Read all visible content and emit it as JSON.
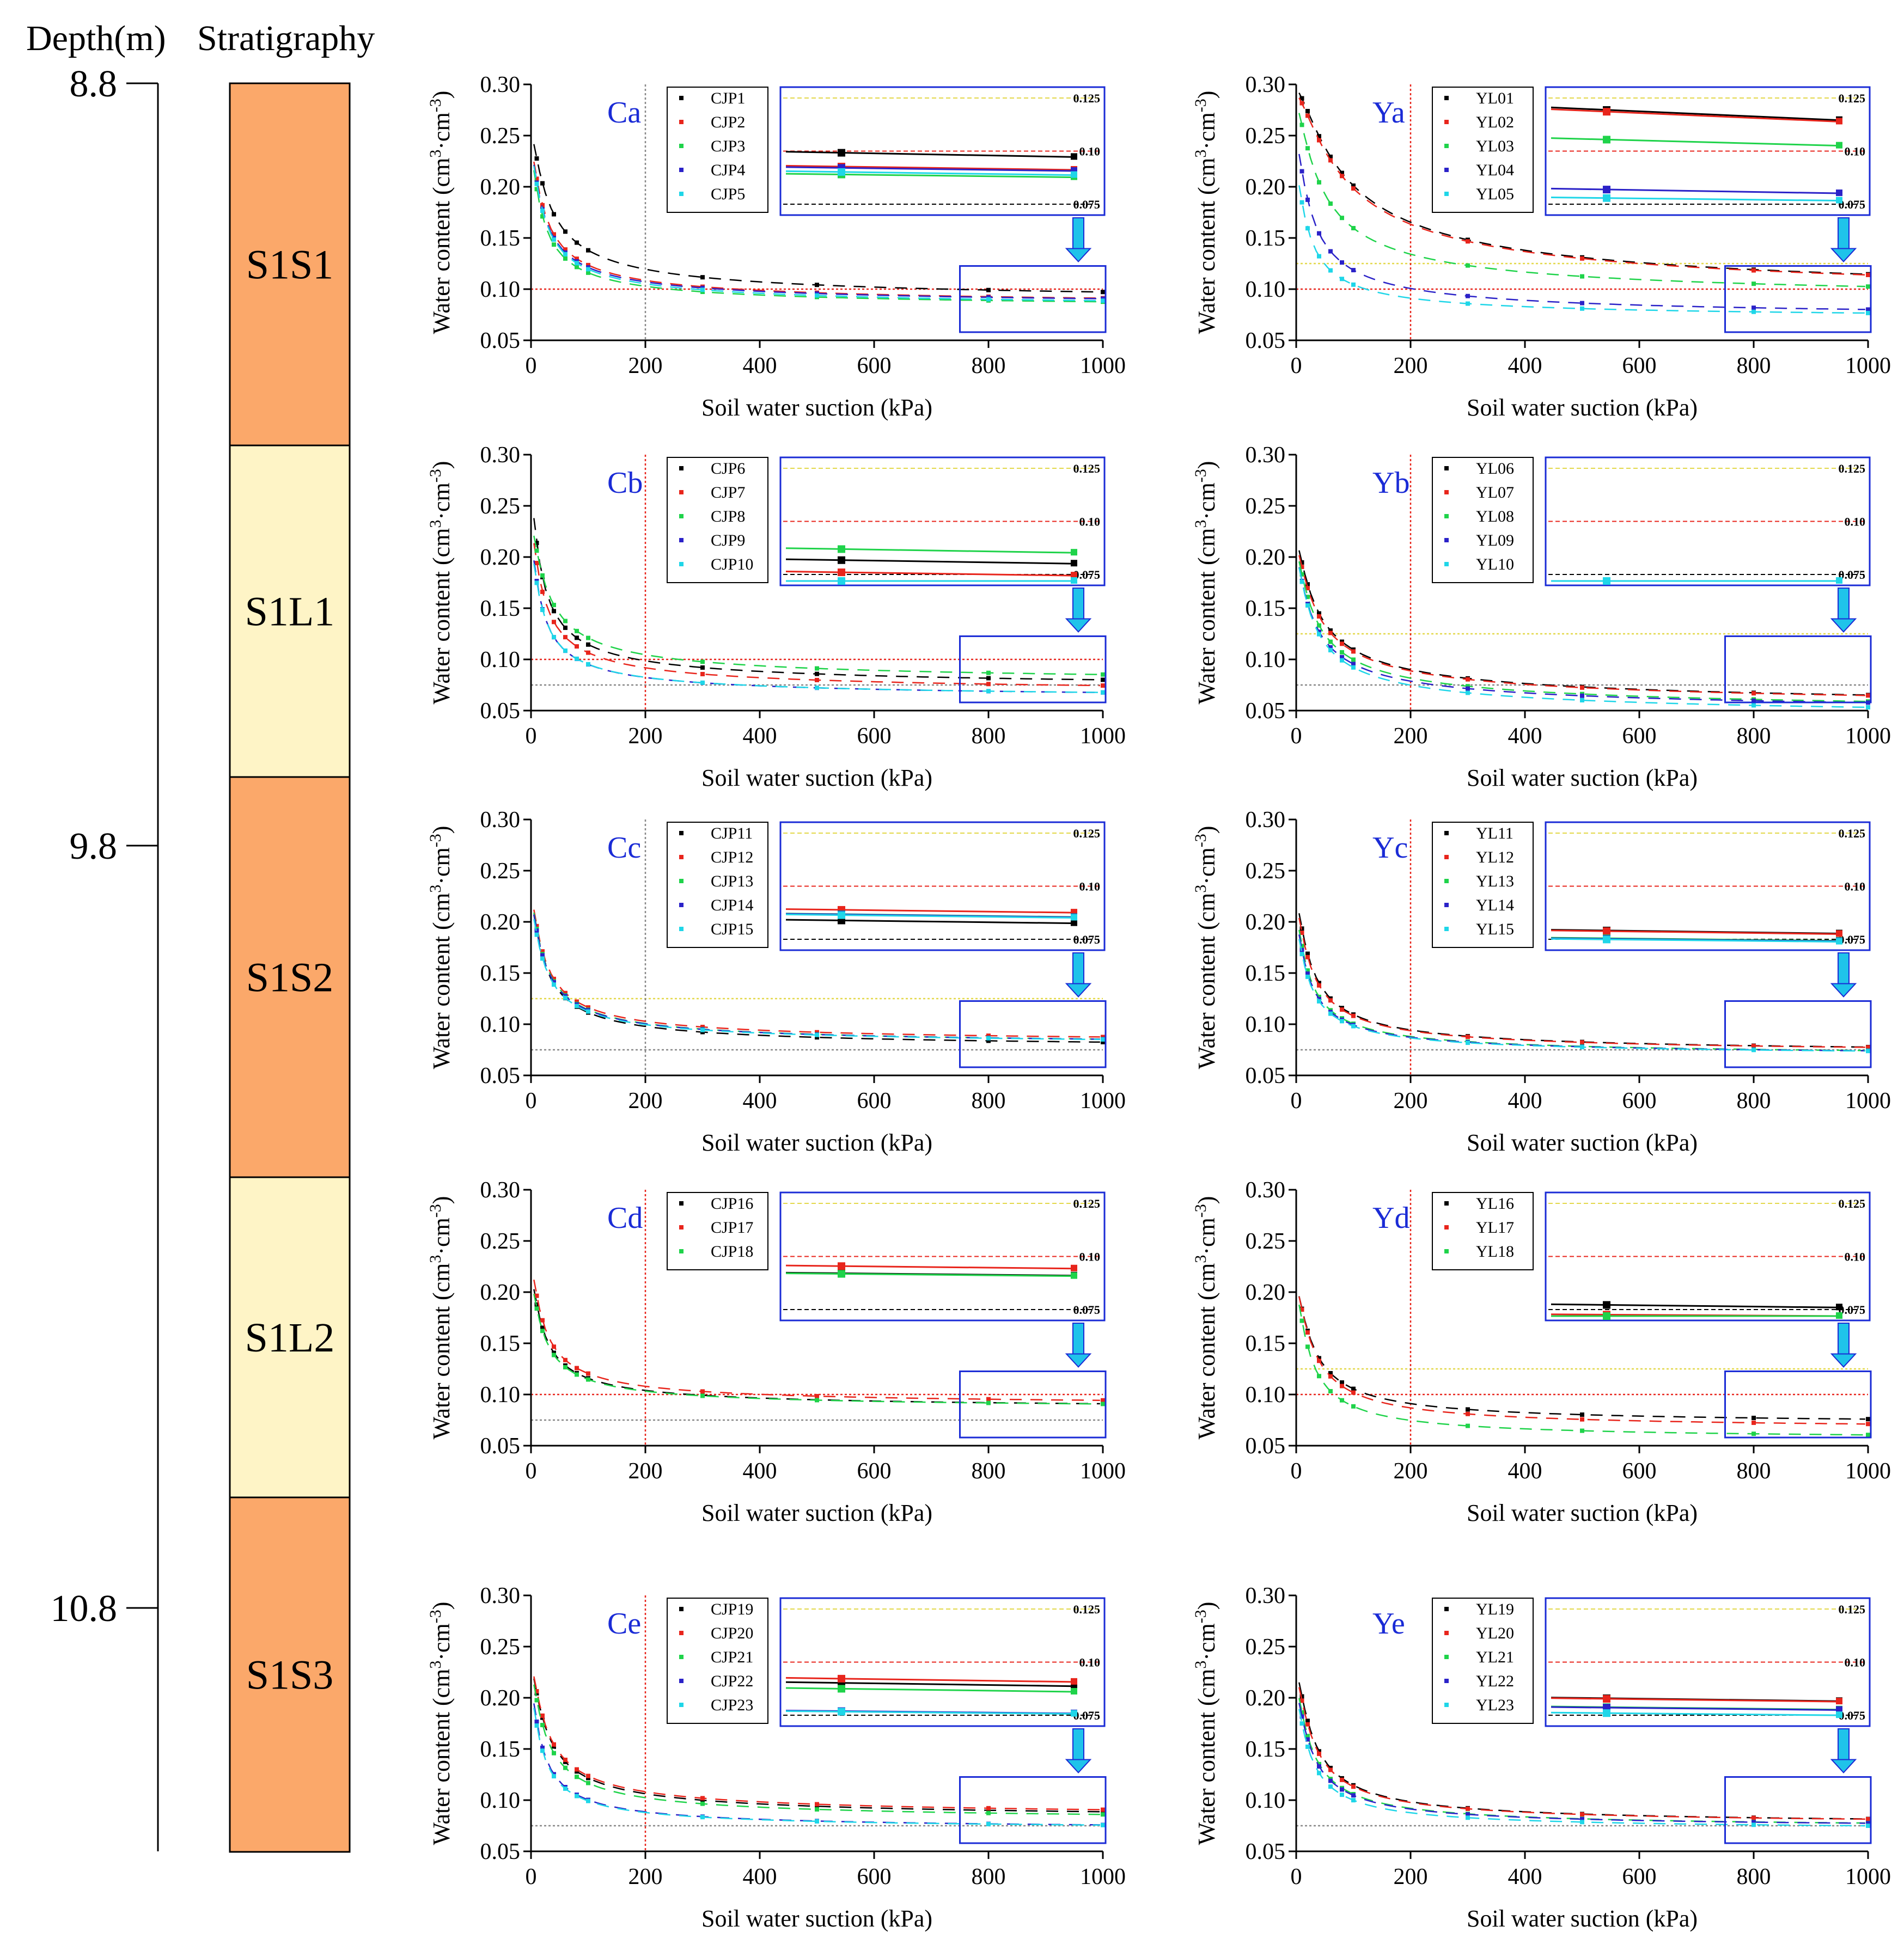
{
  "header": {
    "depth_label": "Depth(m)",
    "strat_label": "Stratigraphy"
  },
  "depth_ticks": [
    {
      "label": "8.8",
      "depth": 8.8
    },
    {
      "label": "9.8",
      "depth": 9.8
    },
    {
      "label": "10.8",
      "depth": 10.8
    }
  ],
  "layers": [
    {
      "name": "S1S1",
      "top": 8.8,
      "bottom": 9.275,
      "color": "#FBA86A"
    },
    {
      "name": "S1L1",
      "top": 9.275,
      "bottom": 9.71,
      "color": "#FEF4C6"
    },
    {
      "name": "S1S2",
      "top": 9.71,
      "bottom": 10.235,
      "color": "#FBA86A"
    },
    {
      "name": "S1L2",
      "top": 10.235,
      "bottom": 10.655,
      "color": "#FEF4C6"
    },
    {
      "name": "S1S3",
      "top": 10.655,
      "bottom": 11.12,
      "color": "#FBA86A"
    }
  ],
  "axis_common": {
    "xlabel": "Soil water suction (kPa)",
    "ylabel_main": "Water content (cm",
    "ylabel_sup1": "3",
    "ylabel_mid": "·cm",
    "ylabel_sup2": "-3",
    "ylabel_end": ")",
    "xlim": [
      0,
      1000
    ],
    "ylim": [
      0.05,
      0.3
    ],
    "xticks": [
      "0",
      "200",
      "400",
      "600",
      "800",
      "1000"
    ],
    "yticks": [
      "0.05",
      "0.10",
      "0.15",
      "0.20",
      "0.25",
      "0.30"
    ],
    "inset_labels": [
      "0.125",
      "0.10",
      "0.075"
    ]
  },
  "colors": {
    "series": [
      "#000000",
      "#e8251c",
      "#1fd34a",
      "#2b22c8",
      "#1fd6e8"
    ],
    "frame": "#1a2bd6",
    "arrow": "#1fc3ea",
    "ref_red": "#e8251c",
    "ref_yellow": "#e3d84a",
    "ref_gray": "#888888"
  },
  "chart_data": [
    {
      "type": "scatter",
      "title": "Ca",
      "column": "C",
      "row": 0,
      "series": [
        {
          "name": "CJP1",
          "theta_r": 0.085,
          "theta_s": 0.252,
          "a": 0.055,
          "n": 0.45
        },
        {
          "name": "CJP2",
          "theta_r": 0.082,
          "theta_s": 0.238,
          "a": 0.07,
          "n": 0.46
        },
        {
          "name": "CJP3",
          "theta_r": 0.08,
          "theta_s": 0.232,
          "a": 0.08,
          "n": 0.47
        },
        {
          "name": "CJP4",
          "theta_r": 0.082,
          "theta_s": 0.236,
          "a": 0.075,
          "n": 0.46
        },
        {
          "name": "CJP5",
          "theta_r": 0.08,
          "theta_s": 0.235,
          "a": 0.075,
          "n": 0.46
        }
      ],
      "ref_lines": [
        {
          "y": 0.1,
          "color": "red"
        }
      ],
      "vline": 200,
      "vline_color": "gray"
    },
    {
      "type": "scatter",
      "title": "Cb",
      "column": "C",
      "row": 1,
      "series": [
        {
          "name": "CJP6",
          "theta_r": 0.07,
          "theta_s": 0.26,
          "a": 0.09,
          "n": 0.45
        },
        {
          "name": "CJP7",
          "theta_r": 0.065,
          "theta_s": 0.23,
          "a": 0.08,
          "n": 0.45
        },
        {
          "name": "CJP8",
          "theta_r": 0.075,
          "theta_s": 0.232,
          "a": 0.06,
          "n": 0.46
        },
        {
          "name": "CJP9",
          "theta_r": 0.06,
          "theta_s": 0.215,
          "a": 0.09,
          "n": 0.46
        },
        {
          "name": "CJP10",
          "theta_r": 0.06,
          "theta_s": 0.21,
          "a": 0.085,
          "n": 0.46
        }
      ],
      "ref_lines": [
        {
          "y": 0.1,
          "color": "red"
        },
        {
          "y": 0.075,
          "color": "gray"
        }
      ],
      "vline": 200,
      "vline_color": "red"
    },
    {
      "type": "scatter",
      "title": "Cc",
      "column": "C",
      "row": 2,
      "series": [
        {
          "name": "CJP11",
          "theta_r": 0.075,
          "theta_s": 0.22,
          "a": 0.07,
          "n": 0.48
        },
        {
          "name": "CJP12",
          "theta_r": 0.08,
          "theta_s": 0.225,
          "a": 0.07,
          "n": 0.48
        },
        {
          "name": "CJP13",
          "theta_r": 0.078,
          "theta_s": 0.222,
          "a": 0.07,
          "n": 0.48
        },
        {
          "name": "CJP14",
          "theta_r": 0.078,
          "theta_s": 0.22,
          "a": 0.07,
          "n": 0.48
        },
        {
          "name": "CJP15",
          "theta_r": 0.078,
          "theta_s": 0.215,
          "a": 0.07,
          "n": 0.48
        }
      ],
      "ref_lines": [
        {
          "y": 0.125,
          "color": "yellow"
        },
        {
          "y": 0.075,
          "color": "gray"
        }
      ],
      "vline": 200,
      "vline_color": "gray"
    },
    {
      "type": "scatter",
      "title": "Cd",
      "column": "C",
      "row": 3,
      "series": [
        {
          "name": "CJP16",
          "theta_r": 0.085,
          "theta_s": 0.215,
          "a": 0.07,
          "n": 0.5
        },
        {
          "name": "CJP17",
          "theta_r": 0.088,
          "theta_s": 0.225,
          "a": 0.07,
          "n": 0.5
        },
        {
          "name": "CJP18",
          "theta_r": 0.085,
          "theta_s": 0.21,
          "a": 0.07,
          "n": 0.5
        }
      ],
      "ref_lines": [
        {
          "y": 0.1,
          "color": "red"
        },
        {
          "y": 0.075,
          "color": "gray"
        }
      ],
      "vline": 200,
      "vline_color": "red"
    },
    {
      "type": "scatter",
      "title": "Ce",
      "column": "C",
      "row": 4,
      "series": [
        {
          "name": "CJP19",
          "theta_r": 0.08,
          "theta_s": 0.23,
          "a": 0.06,
          "n": 0.48
        },
        {
          "name": "CJP20",
          "theta_r": 0.082,
          "theta_s": 0.232,
          "a": 0.06,
          "n": 0.48
        },
        {
          "name": "CJP21",
          "theta_r": 0.078,
          "theta_s": 0.225,
          "a": 0.065,
          "n": 0.48
        },
        {
          "name": "CJP22",
          "theta_r": 0.07,
          "theta_s": 0.21,
          "a": 0.08,
          "n": 0.5
        },
        {
          "name": "CJP23",
          "theta_r": 0.07,
          "theta_s": 0.205,
          "a": 0.08,
          "n": 0.5
        }
      ],
      "ref_lines": [
        {
          "y": 0.075,
          "color": "gray"
        }
      ],
      "vline": 200,
      "vline_color": "red"
    },
    {
      "type": "scatter",
      "title": "Ya",
      "column": "Y",
      "row": 0,
      "series": [
        {
          "name": "YL01",
          "theta_r": 0.085,
          "theta_s": 0.295,
          "a": 0.02,
          "n": 0.45
        },
        {
          "name": "YL02",
          "theta_r": 0.085,
          "theta_s": 0.29,
          "a": 0.02,
          "n": 0.45
        },
        {
          "name": "YL03",
          "theta_r": 0.085,
          "theta_s": 0.28,
          "a": 0.04,
          "n": 0.45
        },
        {
          "name": "YL04",
          "theta_r": 0.07,
          "theta_s": 0.245,
          "a": 0.06,
          "n": 0.48
        },
        {
          "name": "YL05",
          "theta_r": 0.07,
          "theta_s": 0.215,
          "a": 0.07,
          "n": 0.5
        }
      ],
      "ref_lines": [
        {
          "y": 0.125,
          "color": "yellow"
        },
        {
          "y": 0.1,
          "color": "red"
        }
      ],
      "vline": 200,
      "vline_color": "red"
    },
    {
      "type": "scatter",
      "title": "Yb",
      "column": "Y",
      "row": 1,
      "series": [
        {
          "name": "YL06",
          "theta_r": 0.05,
          "theta_s": 0.215,
          "a": 0.05,
          "n": 0.42
        },
        {
          "name": "YL07",
          "theta_r": 0.05,
          "theta_s": 0.21,
          "a": 0.05,
          "n": 0.42
        },
        {
          "name": "YL08",
          "theta_r": 0.045,
          "theta_s": 0.205,
          "a": 0.055,
          "n": 0.42
        },
        {
          "name": "YL09",
          "theta_r": 0.045,
          "theta_s": 0.2,
          "a": 0.06,
          "n": 0.42
        },
        {
          "name": "YL10",
          "theta_r": 0.04,
          "theta_s": 0.2,
          "a": 0.06,
          "n": 0.42
        }
      ],
      "ref_lines": [
        {
          "y": 0.125,
          "color": "yellow"
        },
        {
          "y": 0.075,
          "color": "gray"
        }
      ],
      "vline": 200,
      "vline_color": "red"
    },
    {
      "type": "scatter",
      "title": "Yc",
      "column": "Y",
      "row": 2,
      "series": [
        {
          "name": "YL11",
          "theta_r": 0.07,
          "theta_s": 0.22,
          "a": 0.06,
          "n": 0.5
        },
        {
          "name": "YL12",
          "theta_r": 0.07,
          "theta_s": 0.215,
          "a": 0.06,
          "n": 0.5
        },
        {
          "name": "YL13",
          "theta_r": 0.068,
          "theta_s": 0.205,
          "a": 0.07,
          "n": 0.5
        },
        {
          "name": "YL14",
          "theta_r": 0.068,
          "theta_s": 0.2,
          "a": 0.07,
          "n": 0.5
        },
        {
          "name": "YL15",
          "theta_r": 0.068,
          "theta_s": 0.195,
          "a": 0.07,
          "n": 0.5
        }
      ],
      "ref_lines": [
        {
          "y": 0.075,
          "color": "gray"
        }
      ],
      "vline": 200,
      "vline_color": "red"
    },
    {
      "type": "scatter",
      "title": "Yd",
      "column": "Y",
      "row": 3,
      "series": [
        {
          "name": "YL16",
          "theta_r": 0.07,
          "theta_s": 0.205,
          "a": 0.05,
          "n": 0.55
        },
        {
          "name": "YL17",
          "theta_r": 0.065,
          "theta_s": 0.205,
          "a": 0.05,
          "n": 0.55
        },
        {
          "name": "YL18",
          "theta_r": 0.055,
          "theta_s": 0.2,
          "a": 0.06,
          "n": 0.55
        }
      ],
      "ref_lines": [
        {
          "y": 0.125,
          "color": "yellow"
        },
        {
          "y": 0.1,
          "color": "red"
        }
      ],
      "vline": 200,
      "vline_color": "red"
    },
    {
      "type": "scatter",
      "title": "Ye",
      "column": "Y",
      "row": 4,
      "series": [
        {
          "name": "YL19",
          "theta_r": 0.075,
          "theta_s": 0.225,
          "a": 0.05,
          "n": 0.55
        },
        {
          "name": "YL20",
          "theta_r": 0.075,
          "theta_s": 0.22,
          "a": 0.05,
          "n": 0.55
        },
        {
          "name": "YL21",
          "theta_r": 0.072,
          "theta_s": 0.21,
          "a": 0.055,
          "n": 0.55
        },
        {
          "name": "YL22",
          "theta_r": 0.072,
          "theta_s": 0.205,
          "a": 0.055,
          "n": 0.55
        },
        {
          "name": "YL23",
          "theta_r": 0.07,
          "theta_s": 0.2,
          "a": 0.06,
          "n": 0.55
        }
      ],
      "ref_lines": [
        {
          "y": 0.075,
          "color": "gray"
        }
      ],
      "vline": 200,
      "vline_color": "none"
    }
  ]
}
